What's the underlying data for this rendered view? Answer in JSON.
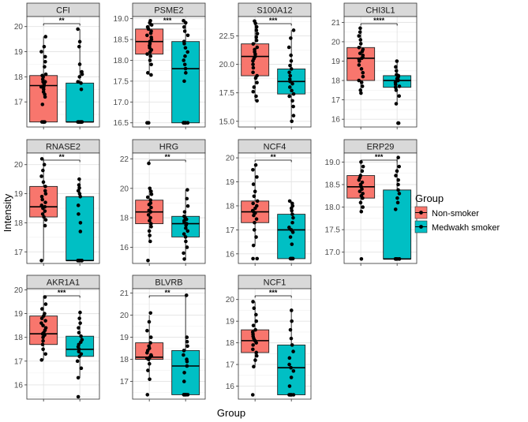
{
  "chart_data": {
    "type": "box",
    "xlabel": "Group",
    "ylabel": "Intensity",
    "legend": {
      "title": "Group",
      "position": "right",
      "entries": [
        {
          "label": "Non-smoker",
          "color": "#F8766D"
        },
        {
          "label": "Medwakh smoker",
          "color": "#00BFC4"
        }
      ]
    },
    "panels": [
      {
        "name": "CFI",
        "ylim": [
          16.0,
          20.4
        ],
        "yticks": [
          17,
          18,
          19,
          20
        ],
        "sig": "**",
        "groups": [
          {
            "q1": 16.2,
            "median": 17.65,
            "q3": 18.05,
            "min": 16.2,
            "max": 19.6,
            "points": [
              16.2,
              16.2,
              16.2,
              16.2,
              16.9,
              17.2,
              17.3,
              17.4,
              17.5,
              17.6,
              17.6,
              17.65,
              17.7,
              17.8,
              17.8,
              17.9,
              18.0,
              18.05,
              18.1,
              18.4,
              18.6,
              18.8,
              19.0,
              19.2,
              19.6
            ]
          },
          {
            "q1": 16.2,
            "median": 16.2,
            "q3": 17.75,
            "min": 16.2,
            "max": 19.9,
            "points": [
              16.2,
              16.2,
              16.2,
              16.2,
              16.2,
              16.2,
              16.2,
              16.2,
              17.5,
              17.75,
              17.8,
              18.0,
              18.1,
              18.2,
              18.5,
              19.2,
              19.4,
              19.9
            ]
          }
        ]
      },
      {
        "name": "PSME2",
        "ylim": [
          16.4,
          19.05
        ],
        "yticks": [
          16.5,
          17.0,
          17.5,
          18.0,
          18.5,
          19.0
        ],
        "sig": "***",
        "groups": [
          {
            "q1": 18.15,
            "median": 18.45,
            "q3": 18.75,
            "min": 17.65,
            "max": 18.95,
            "points": [
              16.5,
              16.5,
              17.65,
              17.7,
              17.9,
              18.0,
              18.1,
              18.15,
              18.2,
              18.25,
              18.3,
              18.35,
              18.4,
              18.45,
              18.5,
              18.55,
              18.6,
              18.65,
              18.7,
              18.75,
              18.8,
              18.85,
              18.9,
              18.95
            ]
          },
          {
            "q1": 16.5,
            "median": 17.8,
            "q3": 18.45,
            "min": 16.5,
            "max": 18.95,
            "points": [
              16.5,
              16.5,
              16.5,
              16.5,
              16.5,
              16.5,
              16.5,
              17.5,
              17.7,
              17.8,
              17.9,
              18.0,
              18.1,
              18.2,
              18.3,
              18.4,
              18.45,
              18.6,
              18.7,
              18.8,
              18.9,
              18.95
            ]
          }
        ]
      },
      {
        "name": "S100A12",
        "ylim": [
          14.5,
          24.2
        ],
        "yticks": [
          15.0,
          17.5,
          20.0,
          22.5
        ],
        "sig": "***",
        "groups": [
          {
            "q1": 19.0,
            "median": 20.7,
            "q3": 21.8,
            "min": 16.8,
            "max": 23.8,
            "points": [
              16.8,
              17.2,
              17.6,
              18.0,
              18.4,
              18.8,
              19.0,
              19.3,
              19.7,
              20.0,
              20.3,
              20.5,
              20.7,
              20.9,
              21.1,
              21.3,
              21.5,
              21.8,
              22.1,
              22.4,
              22.7,
              23.0,
              23.3,
              23.6,
              23.8
            ]
          },
          {
            "q1": 17.4,
            "median": 18.5,
            "q3": 19.6,
            "min": 15.0,
            "max": 23.0,
            "points": [
              15.0,
              15.5,
              16.3,
              16.8,
              17.2,
              17.4,
              17.7,
              18.0,
              18.3,
              18.5,
              18.7,
              19.0,
              19.3,
              19.6,
              19.9,
              20.3,
              20.8,
              21.5,
              22.3,
              23.0
            ]
          }
        ]
      },
      {
        "name": "CHI3L1",
        "ylim": [
          15.6,
          21.3
        ],
        "yticks": [
          16,
          17,
          18,
          19,
          20,
          21
        ],
        "sig": "****",
        "groups": [
          {
            "q1": 18.0,
            "median": 19.15,
            "q3": 19.7,
            "min": 17.35,
            "max": 20.7,
            "points": [
              17.35,
              17.5,
              17.7,
              17.9,
              18.0,
              18.2,
              18.4,
              18.6,
              18.8,
              19.0,
              19.1,
              19.15,
              19.2,
              19.3,
              19.4,
              19.5,
              19.6,
              19.7,
              19.9,
              20.1,
              20.3,
              20.5,
              20.7
            ]
          },
          {
            "q1": 17.65,
            "median": 18.0,
            "q3": 18.25,
            "min": 16.8,
            "max": 19.0,
            "points": [
              15.8,
              15.8,
              16.8,
              17.2,
              17.5,
              17.65,
              17.7,
              17.8,
              17.9,
              18.0,
              18.0,
              18.05,
              18.1,
              18.2,
              18.25,
              18.3,
              18.5,
              18.7,
              19.0
            ]
          }
        ]
      },
      {
        "name": "RNASE2",
        "ylim": [
          16.6,
          20.4
        ],
        "yticks": [
          17,
          18,
          19,
          20
        ],
        "sig": "**",
        "groups": [
          {
            "q1": 18.2,
            "median": 18.55,
            "q3": 19.25,
            "min": 16.7,
            "max": 20.2,
            "points": [
              16.7,
              17.9,
              18.1,
              18.2,
              18.3,
              18.4,
              18.5,
              18.55,
              18.6,
              18.7,
              18.8,
              18.9,
              19.0,
              19.1,
              19.25,
              19.4,
              19.6,
              19.8,
              20.0,
              20.2
            ]
          },
          {
            "q1": 16.7,
            "median": 16.7,
            "q3": 18.9,
            "min": 16.7,
            "max": 19.5,
            "points": [
              16.7,
              16.7,
              16.7,
              16.7,
              16.7,
              16.7,
              16.7,
              16.7,
              17.7,
              18.0,
              18.3,
              18.6,
              18.9,
              19.0,
              19.1,
              19.2,
              19.3,
              19.5
            ]
          }
        ]
      },
      {
        "name": "HRG",
        "ylim": [
          14.9,
          22.4
        ],
        "yticks": [
          16,
          18,
          20,
          22
        ],
        "sig": "**",
        "groups": [
          {
            "q1": 17.6,
            "median": 18.4,
            "q3": 19.2,
            "min": 16.4,
            "max": 20.0,
            "points": [
              15.1,
              16.4,
              16.8,
              17.1,
              17.4,
              17.6,
              17.8,
              18.0,
              18.2,
              18.4,
              18.5,
              18.7,
              18.9,
              19.0,
              19.2,
              19.4,
              19.6,
              19.8,
              20.0,
              21.7
            ]
          },
          {
            "q1": 16.7,
            "median": 17.6,
            "q3": 18.1,
            "min": 15.2,
            "max": 19.9,
            "points": [
              15.2,
              15.6,
              16.0,
              16.4,
              16.7,
              16.9,
              17.1,
              17.3,
              17.5,
              17.6,
              17.7,
              17.8,
              17.9,
              18.0,
              18.1,
              18.4,
              18.8,
              19.3,
              19.9
            ]
          }
        ]
      },
      {
        "name": "NCF4",
        "ylim": [
          15.6,
          20.2
        ],
        "yticks": [
          16,
          17,
          18,
          19,
          20
        ],
        "sig": "**",
        "groups": [
          {
            "q1": 17.3,
            "median": 17.75,
            "q3": 18.2,
            "min": 16.35,
            "max": 19.7,
            "points": [
              15.8,
              15.8,
              16.35,
              16.7,
              17.0,
              17.3,
              17.45,
              17.6,
              17.7,
              17.75,
              17.8,
              17.9,
              18.0,
              18.1,
              18.2,
              18.4,
              18.6,
              18.9,
              19.2,
              19.5,
              19.7
            ]
          },
          {
            "q1": 15.8,
            "median": 17.0,
            "q3": 17.65,
            "min": 15.8,
            "max": 18.2,
            "points": [
              15.8,
              15.8,
              15.8,
              15.8,
              15.8,
              16.4,
              16.7,
              16.9,
              17.0,
              17.1,
              17.3,
              17.5,
              17.65,
              17.8,
              17.9,
              18.0,
              18.1,
              18.2
            ]
          }
        ]
      },
      {
        "name": "ERP29",
        "ylim": [
          16.75,
          19.2
        ],
        "yticks": [
          17.0,
          17.5,
          18.0,
          18.5,
          19.0
        ],
        "sig": "***",
        "groups": [
          {
            "q1": 18.2,
            "median": 18.45,
            "q3": 18.7,
            "min": 17.9,
            "max": 19.0,
            "points": [
              16.85,
              17.9,
              18.0,
              18.1,
              18.2,
              18.25,
              18.3,
              18.35,
              18.4,
              18.45,
              18.5,
              18.55,
              18.6,
              18.65,
              18.7,
              18.8,
              18.9,
              19.0
            ]
          },
          {
            "q1": 16.85,
            "median": 16.85,
            "q3": 18.38,
            "min": 16.85,
            "max": 19.1,
            "points": [
              16.85,
              16.85,
              16.85,
              16.85,
              16.85,
              16.85,
              16.85,
              17.95,
              18.1,
              18.2,
              18.3,
              18.38,
              18.5,
              18.6,
              18.7,
              18.8,
              18.9,
              19.1
            ]
          }
        ]
      },
      {
        "name": "AKR1A1",
        "ylim": [
          15.4,
          20.05
        ],
        "yticks": [
          16,
          17,
          18,
          19,
          20
        ],
        "sig": "***",
        "groups": [
          {
            "q1": 17.7,
            "median": 18.15,
            "q3": 18.9,
            "min": 17.05,
            "max": 19.7,
            "points": [
              17.05,
              17.3,
              17.5,
              17.7,
              17.85,
              18.0,
              18.1,
              18.15,
              18.2,
              18.3,
              18.4,
              18.5,
              18.6,
              18.7,
              18.8,
              18.9,
              19.0,
              19.2,
              19.4,
              19.7
            ]
          },
          {
            "q1": 17.2,
            "median": 17.5,
            "q3": 18.05,
            "min": 16.3,
            "max": 19.05,
            "points": [
              15.5,
              16.3,
              16.7,
              17.0,
              17.2,
              17.3,
              17.4,
              17.5,
              17.6,
              17.7,
              17.8,
              17.9,
              18.05,
              18.2,
              18.4,
              18.6,
              18.8,
              19.05
            ]
          }
        ]
      },
      {
        "name": "BLVRB",
        "ylim": [
          16.2,
          21.2
        ],
        "yticks": [
          17,
          18,
          19,
          20,
          21
        ],
        "sig": "**",
        "groups": [
          {
            "q1": 18.0,
            "median": 18.1,
            "q3": 18.75,
            "min": 17.1,
            "max": 20.0,
            "points": [
              16.4,
              17.1,
              17.5,
              17.8,
              18.0,
              18.05,
              18.1,
              18.15,
              18.2,
              18.3,
              18.4,
              18.5,
              18.6,
              18.75,
              19.0,
              19.3,
              19.7,
              20.1
            ]
          },
          {
            "q1": 16.4,
            "median": 17.7,
            "q3": 18.4,
            "min": 16.4,
            "max": 20.9,
            "points": [
              16.4,
              16.4,
              16.4,
              16.4,
              16.4,
              16.4,
              17.0,
              17.4,
              17.7,
              17.9,
              18.0,
              18.2,
              18.4,
              18.6,
              18.8,
              19.0,
              20.9
            ]
          }
        ]
      },
      {
        "name": "NCF1",
        "ylim": [
          15.4,
          20.5
        ],
        "yticks": [
          16,
          17,
          18,
          19,
          20
        ],
        "sig": "***",
        "groups": [
          {
            "q1": 17.55,
            "median": 18.1,
            "q3": 18.6,
            "min": 16.9,
            "max": 19.9,
            "points": [
              15.6,
              16.9,
              17.2,
              17.4,
              17.55,
              17.7,
              17.9,
              18.0,
              18.1,
              18.2,
              18.3,
              18.4,
              18.5,
              18.6,
              18.8,
              19.0,
              19.3,
              19.6,
              19.9
            ]
          },
          {
            "q1": 15.6,
            "median": 16.85,
            "q3": 17.9,
            "min": 15.6,
            "max": 19.5,
            "points": [
              15.6,
              15.6,
              15.6,
              15.6,
              15.6,
              16.0,
              16.4,
              16.7,
              16.85,
              17.0,
              17.3,
              17.6,
              17.9,
              18.2,
              18.6,
              19.0,
              19.5
            ]
          }
        ]
      }
    ]
  }
}
